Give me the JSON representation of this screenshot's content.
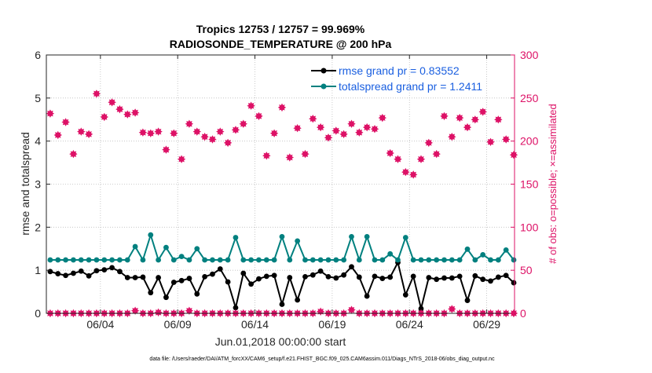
{
  "chart_data": {
    "type": "line",
    "title": "Tropics 12753 / 12757 = 99.969%",
    "subtitle": "RADIOSONDE_TEMPERATURE @ 200 hPa",
    "xlabel": "Jun.01,2018 00:00:00 start",
    "ylabel": "rmse and totalspread",
    "y2label": "# of obs: o=possible; ×=assimilated",
    "footer": "data file: /Users/raeder/DAI/ATM_forcXX/CAM6_setup/f.e21.FHIST_BGC.f09_025.CAM6assim.011/Diags_NTrS_2018-06/obs_diag_output.nc",
    "xlim": [
      0.5,
      30.8
    ],
    "ylim": [
      0,
      6
    ],
    "y2lim": [
      0,
      300
    ],
    "xticks": [
      {
        "value": 4,
        "label": "06/04"
      },
      {
        "value": 9,
        "label": "06/09"
      },
      {
        "value": 14,
        "label": "06/14"
      },
      {
        "value": 19,
        "label": "06/19"
      },
      {
        "value": 24,
        "label": "06/24"
      },
      {
        "value": 29,
        "label": "06/29"
      }
    ],
    "yticks": [
      "0",
      "1",
      "2",
      "3",
      "4",
      "5",
      "6"
    ],
    "y2ticks": [
      "0",
      "50",
      "100",
      "150",
      "200",
      "250",
      "300"
    ],
    "legend": [
      {
        "label": "rmse grand pr = 0.83552",
        "color": "#000000"
      },
      {
        "label": "totalspread grand pr = 1.2411",
        "color": "#00807f"
      }
    ],
    "x": [
      0.75,
      1.25,
      1.75,
      2.25,
      2.75,
      3.25,
      3.75,
      4.25,
      4.75,
      5.25,
      5.75,
      6.25,
      6.75,
      7.25,
      7.75,
      8.25,
      8.75,
      9.25,
      9.75,
      10.25,
      10.75,
      11.25,
      11.75,
      12.25,
      12.75,
      13.25,
      13.75,
      14.25,
      14.75,
      15.25,
      15.75,
      16.25,
      16.75,
      17.25,
      17.75,
      18.25,
      18.75,
      19.25,
      19.75,
      20.25,
      20.75,
      21.25,
      21.75,
      22.25,
      22.75,
      23.25,
      23.75,
      24.25,
      24.75,
      25.25,
      25.75,
      26.25,
      26.75,
      27.25,
      27.75,
      28.25,
      28.75,
      29.25,
      29.75,
      30.25,
      30.75
    ],
    "series": [
      {
        "name": "rmse",
        "color": "#000000",
        "axis": "left",
        "values": [
          0.97,
          0.92,
          0.88,
          0.93,
          0.98,
          0.87,
          0.99,
          1.01,
          1.06,
          0.97,
          0.83,
          0.83,
          0.84,
          0.48,
          0.83,
          0.37,
          0.72,
          0.76,
          0.81,
          0.45,
          0.85,
          0.91,
          1.03,
          0.73,
          0.13,
          0.93,
          0.68,
          0.8,
          0.86,
          0.88,
          0.21,
          0.83,
          0.31,
          0.85,
          0.89,
          0.98,
          0.85,
          0.82,
          0.89,
          1.08,
          0.84,
          0.4,
          0.86,
          0.81,
          0.84,
          1.18,
          0.43,
          0.86,
          0.11,
          0.83,
          0.79,
          0.82,
          0.82,
          0.86,
          0.3,
          0.87,
          0.79,
          0.75,
          0.84,
          0.88,
          0.71
        ]
      },
      {
        "name": "totalspread",
        "color": "#00807f",
        "axis": "left",
        "values": [
          1.24,
          1.24,
          1.24,
          1.24,
          1.24,
          1.24,
          1.24,
          1.24,
          1.24,
          1.24,
          1.24,
          1.55,
          1.24,
          1.82,
          1.24,
          1.53,
          1.24,
          1.32,
          1.24,
          1.5,
          1.24,
          1.24,
          1.24,
          1.24,
          1.76,
          1.24,
          1.24,
          1.24,
          1.24,
          1.24,
          1.78,
          1.24,
          1.68,
          1.24,
          1.24,
          1.24,
          1.24,
          1.24,
          1.24,
          1.78,
          1.24,
          1.78,
          1.24,
          1.24,
          1.38,
          1.24,
          1.76,
          1.24,
          1.24,
          1.24,
          1.24,
          1.24,
          1.24,
          1.24,
          1.49,
          1.24,
          1.36,
          1.24,
          1.24,
          1.47,
          1.24
        ]
      },
      {
        "name": "obs possible",
        "color": "#dd1166",
        "axis": "right",
        "values": [
          232,
          207,
          222,
          185,
          211,
          208,
          255,
          228,
          245,
          237,
          231,
          233,
          210,
          209,
          211,
          190,
          209,
          179,
          220,
          211,
          205,
          202,
          211,
          198,
          213,
          220,
          241,
          229,
          183,
          209,
          239,
          181,
          215,
          185,
          226,
          216,
          204,
          212,
          208,
          220,
          210,
          216,
          214,
          227,
          186,
          179,
          164,
          161,
          179,
          198,
          185,
          229,
          205,
          227,
          216,
          225,
          234,
          199,
          225,
          202,
          184
        ]
      },
      {
        "name": "obs assimilated",
        "color": "#dd1166",
        "axis": "right",
        "values": [
          0,
          0,
          0,
          0,
          0,
          0,
          0,
          0,
          0,
          0,
          0,
          3,
          0,
          0,
          1,
          0,
          0,
          0,
          3,
          0,
          0,
          0,
          0,
          0,
          0,
          0,
          0,
          0,
          0,
          0,
          0,
          0,
          0,
          0,
          0,
          2,
          0,
          0,
          0,
          4,
          0,
          0,
          0,
          0,
          0,
          0,
          0,
          0,
          0,
          0,
          0,
          0,
          5,
          0,
          0,
          0,
          0,
          0,
          0,
          0,
          0
        ]
      }
    ]
  }
}
